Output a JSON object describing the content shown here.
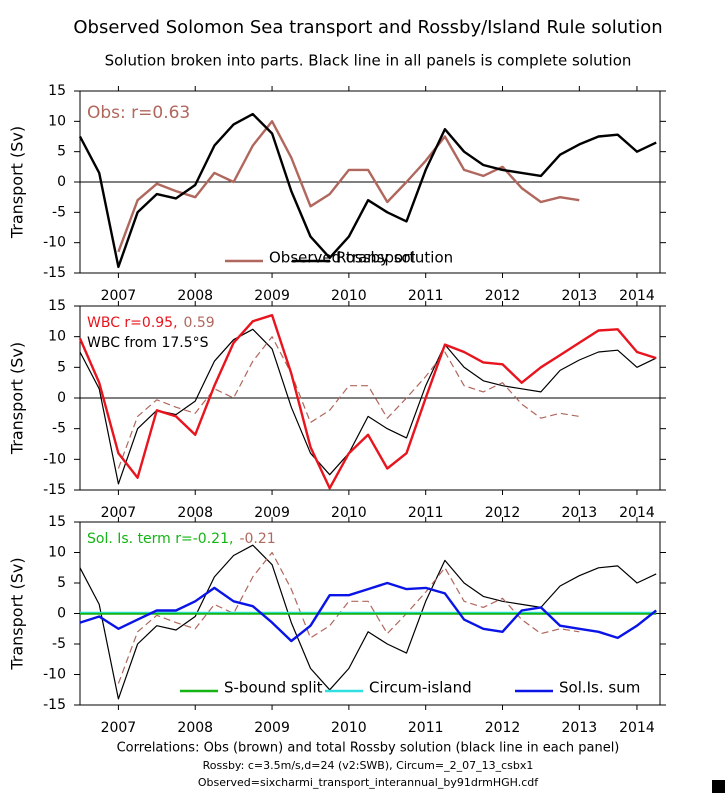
{
  "header": {
    "title": "Observed Solomon Sea transport and Rossby/Island Rule solution",
    "subtitle": "Solution broken into parts. Black line in all panels is complete solution"
  },
  "footer": [
    "Correlations: Obs (brown) and total Rossby solution (black line in each panel)",
    "Rossby: c=3.5m/s,d=24 (v2:SWB), Circum=_2_07_13_csbx1",
    "Observed=sixcharmi_transport_interannual_by91drmHGH.cdf"
  ],
  "chart_data": [
    {
      "type": "line",
      "ylabel": "Transport (Sv)",
      "ylim": [
        -15,
        15
      ],
      "yticks": [
        -15,
        -10,
        -5,
        0,
        5,
        10,
        15
      ],
      "zero_line": true,
      "xlim": [
        2007,
        2014.55
      ],
      "xticks": [
        {
          "value": 2007.5,
          "label": "2007"
        },
        {
          "value": 2008.5,
          "label": "2008"
        },
        {
          "value": 2009.5,
          "label": "2009"
        },
        {
          "value": 2010.5,
          "label": "2010"
        },
        {
          "value": 2011.5,
          "label": "2011"
        },
        {
          "value": 2012.5,
          "label": "2012"
        },
        {
          "value": 2013.5,
          "label": "2013"
        },
        {
          "value": 2014.25,
          "label": "2014"
        }
      ],
      "annotations": [
        [
          {
            "text": "Obs: r=0.63",
            "color": "#b0675d"
          }
        ]
      ],
      "legend_colored_text": true,
      "x": [
        2007,
        2007.25,
        2007.5,
        2007.75,
        2008,
        2008.25,
        2008.5,
        2008.75,
        2009,
        2009.25,
        2009.5,
        2009.75,
        2010,
        2010.25,
        2010.5,
        2010.75,
        2011,
        2011.25,
        2011.5,
        2011.75,
        2012,
        2012.25,
        2012.5,
        2012.75,
        2013,
        2013.25,
        2013.5,
        2013.75,
        2014,
        2014.25,
        2014.5
      ],
      "series": [
        {
          "name": "Observed transport",
          "color": "#b0675d",
          "style": "thick",
          "values": [
            null,
            null,
            -11.5,
            -3,
            -0.3,
            -1.5,
            -2.5,
            1.5,
            0,
            6,
            10,
            4,
            -4,
            -2,
            2,
            2,
            -3.3,
            0,
            3.5,
            7.5,
            2,
            1,
            2.5,
            -1,
            -3.3,
            -2.5,
            -3,
            null,
            null,
            null,
            null
          ]
        },
        {
          "name": "Rossby solution",
          "color": "#000000",
          "style": "thick",
          "values": [
            7.5,
            1.5,
            -14,
            -5,
            -2,
            -2.7,
            -0.5,
            6,
            9.5,
            11.2,
            8,
            -1.5,
            -9,
            -12.5,
            -9,
            -3,
            -5,
            -6.5,
            2,
            8.7,
            5,
            2.8,
            2,
            1.5,
            1,
            4.5,
            6.2,
            7.5,
            7.8,
            5,
            6.5
          ]
        }
      ]
    },
    {
      "type": "line",
      "ylabel": "Transport (Sv)",
      "ylim": [
        -15,
        15
      ],
      "yticks": [
        -15,
        -10,
        -5,
        0,
        5,
        10,
        15
      ],
      "zero_line": true,
      "xlim": [
        2007,
        2014.55
      ],
      "xticks": [
        {
          "value": 2007.5,
          "label": "2007"
        },
        {
          "value": 2008.5,
          "label": "2008"
        },
        {
          "value": 2009.5,
          "label": "2009"
        },
        {
          "value": 2010.5,
          "label": "2010"
        },
        {
          "value": 2011.5,
          "label": "2011"
        },
        {
          "value": 2012.5,
          "label": "2012"
        },
        {
          "value": 2013.5,
          "label": "2013"
        },
        {
          "value": 2014.25,
          "label": "2014"
        }
      ],
      "annotations": [
        [
          {
            "text": "WBC r=0.95,",
            "color": "#e8141e"
          },
          {
            "text": "0.59",
            "color": "#b0675d"
          }
        ],
        [
          {
            "text": "WBC from 17.5°S",
            "color": "#000000"
          }
        ]
      ],
      "x": [
        2007,
        2007.25,
        2007.5,
        2007.75,
        2008,
        2008.25,
        2008.5,
        2008.75,
        2009,
        2009.25,
        2009.5,
        2009.75,
        2010,
        2010.25,
        2010.5,
        2010.75,
        2011,
        2011.25,
        2011.5,
        2011.75,
        2012,
        2012.25,
        2012.5,
        2012.75,
        2013,
        2013.25,
        2013.5,
        2013.75,
        2014,
        2014.25,
        2014.5
      ],
      "series": [
        {
          "color": "#000000",
          "style": "thin",
          "values": [
            7.5,
            1.5,
            -14,
            -5,
            -2,
            -2.7,
            -0.5,
            6,
            9.5,
            11.2,
            8,
            -1.5,
            -9,
            -12.5,
            -9,
            -3,
            -5,
            -6.5,
            2,
            8.7,
            5,
            2.8,
            2,
            1.5,
            1,
            4.5,
            6.2,
            7.5,
            7.8,
            5,
            6.5
          ]
        },
        {
          "color": "#b0675d",
          "style": "dashed",
          "values": [
            null,
            null,
            -11.5,
            -3,
            -0.3,
            -1.5,
            -2.5,
            1.5,
            0,
            6,
            10,
            4,
            -4,
            -2,
            2,
            2,
            -3.3,
            0,
            3.5,
            7.5,
            2,
            1,
            2.5,
            -1,
            -3.3,
            -2.5,
            -3,
            null,
            null,
            null,
            null
          ]
        },
        {
          "color": "#e8141e",
          "style": "thick",
          "values": [
            9.7,
            2.5,
            -9,
            -13,
            -2,
            -3,
            -6,
            2,
            9,
            12.5,
            13.5,
            4,
            -8,
            -14.7,
            -9,
            -6,
            -11.5,
            -9,
            0,
            8.7,
            7.5,
            5.8,
            5.5,
            2.5,
            5,
            7,
            9,
            11,
            11.2,
            7.5,
            6.5
          ]
        }
      ]
    },
    {
      "type": "line",
      "ylabel": "Transport (Sv)",
      "ylim": [
        -15,
        15
      ],
      "yticks": [
        -15,
        -10,
        -5,
        0,
        5,
        10,
        15
      ],
      "zero_line": true,
      "xlim": [
        2007,
        2014.55
      ],
      "xticks": [
        {
          "value": 2007.5,
          "label": "2007"
        },
        {
          "value": 2008.5,
          "label": "2008"
        },
        {
          "value": 2009.5,
          "label": "2009"
        },
        {
          "value": 2010.5,
          "label": "2010"
        },
        {
          "value": 2011.5,
          "label": "2011"
        },
        {
          "value": 2012.5,
          "label": "2012"
        },
        {
          "value": 2013.5,
          "label": "2013"
        },
        {
          "value": 2014.25,
          "label": "2014"
        }
      ],
      "annotations": [
        [
          {
            "text": "Sol. Is. term r=-0.21,",
            "color": "#14b414"
          },
          {
            "text": "-0.21",
            "color": "#b0675d"
          }
        ]
      ],
      "legend_colored_text": false,
      "x": [
        2007,
        2007.25,
        2007.5,
        2007.75,
        2008,
        2008.25,
        2008.5,
        2008.75,
        2009,
        2009.25,
        2009.5,
        2009.75,
        2010,
        2010.25,
        2010.5,
        2010.75,
        2011,
        2011.25,
        2011.5,
        2011.75,
        2012,
        2012.25,
        2012.5,
        2012.75,
        2013,
        2013.25,
        2013.5,
        2013.75,
        2014,
        2014.25,
        2014.5
      ],
      "series": [
        {
          "color": "#000000",
          "style": "thin",
          "values": [
            7.5,
            1.5,
            -14,
            -5,
            -2,
            -2.7,
            -0.5,
            6,
            9.5,
            11.2,
            8,
            -1.5,
            -9,
            -12.5,
            -9,
            -3,
            -5,
            -6.5,
            2,
            8.7,
            5,
            2.8,
            2,
            1.5,
            1,
            4.5,
            6.2,
            7.5,
            7.8,
            5,
            6.5
          ]
        },
        {
          "color": "#b0675d",
          "style": "dashed",
          "values": [
            null,
            null,
            -11.5,
            -3,
            -0.3,
            -1.5,
            -2.5,
            1.5,
            0,
            6,
            10,
            4,
            -4,
            -2,
            2,
            2,
            -3.3,
            0,
            3.5,
            7.5,
            2,
            1,
            2.5,
            -1,
            -3.3,
            -2.5,
            -3,
            null,
            null,
            null,
            null
          ]
        },
        {
          "name": "S-bound split",
          "color": "#14b414",
          "style": "thick",
          "values": [
            0,
            0,
            0,
            0,
            0,
            0,
            0,
            0,
            0,
            0,
            0,
            0,
            0,
            0,
            0,
            0,
            0,
            0,
            0,
            0,
            0,
            0,
            0,
            0,
            0,
            0,
            0,
            0,
            0,
            0,
            0
          ]
        },
        {
          "name": "Circum-island",
          "color": "#30e0e0",
          "style": "thin",
          "values": [
            0.2,
            0.2,
            0.2,
            0.2,
            0.2,
            0.2,
            0.2,
            0.2,
            0.2,
            0.2,
            0.2,
            0.2,
            0.2,
            0.2,
            0.2,
            0.2,
            0.2,
            0.2,
            0.2,
            0.2,
            0.2,
            0.2,
            0.2,
            0.2,
            0.2,
            0.2,
            0.2,
            0.2,
            0.2,
            0.2,
            0.2
          ]
        },
        {
          "name": "Sol.Is. sum",
          "color": "#0a14e6",
          "style": "thick",
          "values": [
            -1.5,
            -0.5,
            -2.5,
            -1,
            0.5,
            0.5,
            2,
            4.2,
            2,
            1.2,
            -1.5,
            -4.5,
            -2,
            3,
            3,
            4,
            5,
            4,
            4.2,
            3.3,
            -1,
            -2.5,
            -3,
            0.5,
            1,
            -2,
            -2.5,
            -3,
            -4,
            -2,
            0.5
          ]
        }
      ]
    }
  ]
}
